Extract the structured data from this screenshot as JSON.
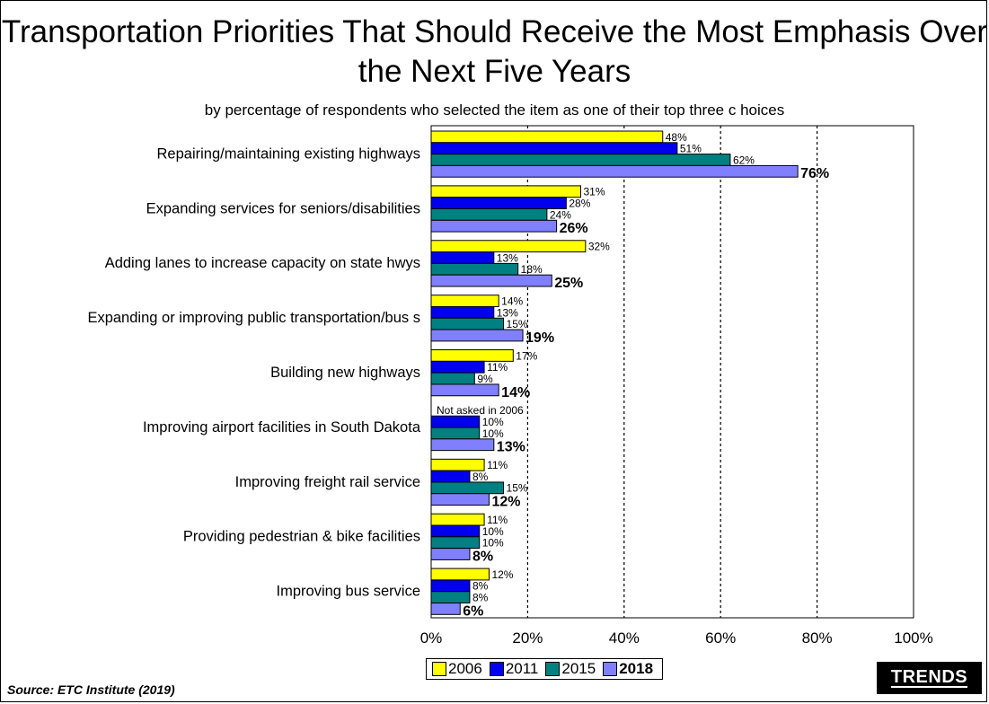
{
  "page": {
    "source": "Source:  ETC Institute (2019)",
    "logo": "TRENDS"
  },
  "chart_data": {
    "type": "bar",
    "orientation": "horizontal",
    "title": "Transportation Priorities That Should Receive the Most Emphasis Over the Next Five Years",
    "subtitle": "by percentage of respondents who selected the item as one of their top three c hoices",
    "categories": [
      "Repairing/maintaining existing highways",
      "Expanding services for seniors/disabilities",
      "Adding lanes to increase capacity on state hwys",
      "Expanding or improving public transportation/bus s",
      "Building new highways",
      "Improving airport facilities in South Dakota",
      "Improving freight rail service",
      "Providing pedestrian & bike facilities",
      "Improving bus service"
    ],
    "series": [
      {
        "name": "2006",
        "color": "#ffff00",
        "values": [
          48,
          31,
          32,
          14,
          17,
          null,
          11,
          11,
          12
        ]
      },
      {
        "name": "2011",
        "color": "#0000ee",
        "values": [
          51,
          28,
          13,
          13,
          11,
          10,
          8,
          10,
          8
        ]
      },
      {
        "name": "2015",
        "color": "#008080",
        "values": [
          62,
          24,
          18,
          15,
          9,
          10,
          15,
          10,
          8
        ]
      },
      {
        "name": "2018",
        "color": "#8080ff",
        "values": [
          76,
          26,
          25,
          19,
          14,
          13,
          12,
          8,
          6
        ]
      }
    ],
    "annotations": [
      {
        "category": "Improving airport facilities in South Dakota",
        "series": "2006",
        "text": "Not asked in 2006"
      }
    ],
    "xlim": [
      0,
      100
    ],
    "xticks": [
      "0%",
      "20%",
      "40%",
      "60%",
      "80%",
      "100%"
    ],
    "grid": "dashed vertical at 20%, 40%, 60%, 80%",
    "legend": "bottom"
  }
}
